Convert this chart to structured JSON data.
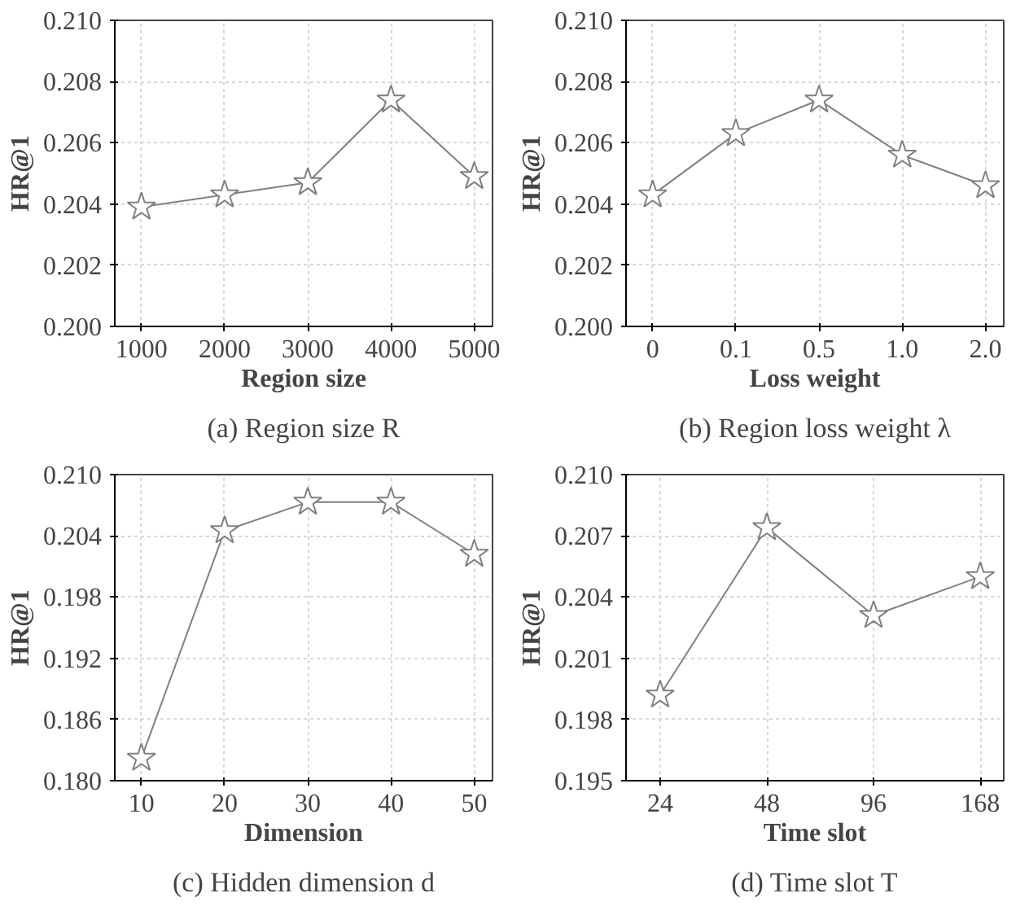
{
  "chart_data": [
    {
      "type": "line",
      "title": "(a) Region size R",
      "xlabel": "Region size",
      "ylabel": "HR@1",
      "categories": [
        "1000",
        "2000",
        "3000",
        "4000",
        "5000"
      ],
      "series": [
        {
          "color": "#808080",
          "values": [
            0.2039,
            0.2043,
            0.2047,
            0.2074,
            0.2049
          ]
        }
      ],
      "ylim": [
        0.2,
        0.21
      ],
      "yticks": [
        {
          "value": 0.2,
          "label": "0.200"
        },
        0.202,
        0.204,
        0.206,
        0.208,
        {
          "value": 0.21,
          "label": "0.210"
        }
      ],
      "grid": true,
      "marker": "star",
      "line_style": "solid"
    },
    {
      "type": "line",
      "title": "(b) Region loss weight λ",
      "xlabel": "Loss weight",
      "ylabel": "HR@1",
      "categories": [
        "0",
        "0.1",
        "0.5",
        "1.0",
        "2.0"
      ],
      "series": [
        {
          "color": "#808080",
          "values": [
            0.2043,
            0.2063,
            0.2074,
            0.2056,
            0.2046
          ]
        }
      ],
      "ylim": [
        0.2,
        0.21
      ],
      "yticks": [
        {
          "value": 0.2,
          "label": "0.200"
        },
        0.202,
        0.204,
        0.206,
        0.208,
        {
          "value": 0.21,
          "label": "0.210"
        }
      ],
      "grid": true,
      "marker": "star",
      "line_style": "solid"
    },
    {
      "type": "line",
      "title": "(c) Hidden dimension d",
      "xlabel": "Dimension",
      "ylabel": "HR@1",
      "categories": [
        "10",
        "20",
        "30",
        "40",
        "50"
      ],
      "series": [
        {
          "color": "#808080",
          "values": [
            0.1822,
            0.2045,
            0.2073,
            0.2073,
            0.2022
          ]
        }
      ],
      "ylim": [
        0.18,
        0.21
      ],
      "yticks": [
        {
          "value": 0.18,
          "label": "0.180"
        },
        0.186,
        0.192,
        0.198,
        0.204,
        {
          "value": 0.21,
          "label": "0.210"
        }
      ],
      "grid": true,
      "marker": "star",
      "line_style": "solid"
    },
    {
      "type": "line",
      "title": "(d) Time slot T",
      "xlabel": "Time slot",
      "ylabel": "HR@1",
      "categories": [
        "24",
        "48",
        "96",
        "168"
      ],
      "series": [
        {
          "color": "#808080",
          "values": [
            0.1992,
            0.2074,
            0.2031,
            0.205
          ]
        }
      ],
      "ylim": [
        0.195,
        0.21
      ],
      "yticks": [
        0.195,
        0.198,
        0.201,
        0.204,
        0.207,
        {
          "value": 0.21,
          "label": "0.210"
        }
      ],
      "grid": true,
      "marker": "star",
      "line_style": "solid"
    }
  ]
}
